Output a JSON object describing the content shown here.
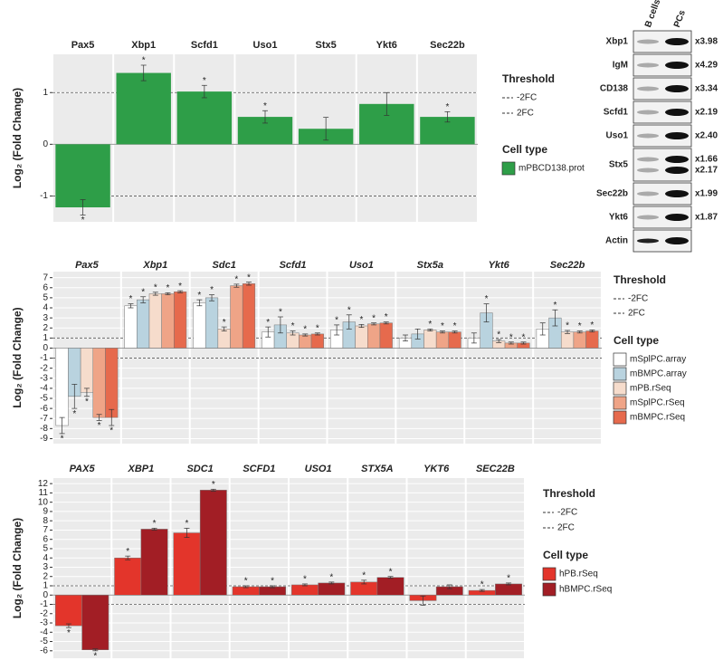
{
  "chart_data": [
    {
      "type": "bar",
      "y_label": "Log₂ (Fold Change)",
      "facets": [
        "Pax5",
        "Xbp1",
        "Scfd1",
        "Uso1",
        "Stx5",
        "Ykt6",
        "Sec22b"
      ],
      "ylim": [
        -1.5,
        1.74
      ],
      "yticks": [
        -1,
        0,
        1
      ],
      "grid": true,
      "threshold": {
        "title": "Threshold",
        "lines": [
          {
            "name": "-2FC",
            "value": -1
          },
          {
            "name": "2FC",
            "value": 1
          }
        ]
      },
      "legend_title": "Cell type",
      "series": [
        {
          "name": "mPBCD138.prot",
          "color": "#2e9e48",
          "values": [
            -1.22,
            1.38,
            1.02,
            0.53,
            0.3,
            0.78,
            0.53
          ],
          "errors": [
            0.15,
            0.15,
            0.12,
            0.12,
            0.22,
            0.22,
            0.1
          ],
          "labels": [
            "*",
            "*",
            "*",
            "*",
            null,
            null,
            "*"
          ]
        }
      ]
    },
    {
      "type": "bar",
      "y_label": "Log₂ (Fold Change)",
      "facets": [
        "Pax5",
        "Xbp1",
        "Sdc1",
        "Scfd1",
        "Uso1",
        "Stx5a",
        "Ykt6",
        "Sec22b"
      ],
      "ylim": [
        -9.5,
        7.6
      ],
      "yticks": [
        -9,
        -8,
        -7,
        -6,
        -5,
        -4,
        -3,
        -2,
        -1,
        0,
        1,
        2,
        3,
        4,
        5,
        6,
        7
      ],
      "grid": true,
      "threshold": {
        "title": "Threshold",
        "lines": [
          {
            "name": "-2FC",
            "value": -1
          },
          {
            "name": "2FC",
            "value": 1
          }
        ]
      },
      "legend_title": "Cell type",
      "series": [
        {
          "name": "mSplPC.array",
          "color": "#ffffff",
          "values": [
            -7.7,
            4.2,
            4.5,
            1.6,
            1.8,
            1.0,
            1.0,
            1.9
          ],
          "errors": [
            0.8,
            0.2,
            0.3,
            0.5,
            0.5,
            0.3,
            0.5,
            0.6
          ],
          "labels": [
            "*",
            "*",
            "*",
            "*",
            "*",
            null,
            null,
            null
          ]
        },
        {
          "name": "mBMPC.array",
          "color": "#b9d3df",
          "values": [
            -4.8,
            4.8,
            5.0,
            2.3,
            2.6,
            1.4,
            3.5,
            3.0
          ],
          "errors": [
            1.2,
            0.3,
            0.3,
            0.8,
            0.7,
            0.5,
            0.9,
            0.8
          ],
          "labels": [
            "*",
            "*",
            "*",
            "*",
            "*",
            null,
            "*",
            "*"
          ]
        },
        {
          "name": "mPB.rSeq",
          "color": "#f6dccc",
          "values": [
            -4.4,
            5.4,
            1.9,
            1.5,
            2.2,
            1.8,
            0.7,
            1.6
          ],
          "errors": [
            0.4,
            0.15,
            0.2,
            0.2,
            0.15,
            0.1,
            0.15,
            0.15
          ],
          "labels": [
            "*",
            "*",
            "*",
            "*",
            "*",
            "*",
            "*",
            "*"
          ]
        },
        {
          "name": "mSplPC.rSeq",
          "color": "#efa487",
          "values": [
            -6.9,
            5.4,
            6.2,
            1.3,
            2.4,
            1.6,
            0.5,
            1.6
          ],
          "errors": [
            0.3,
            0.1,
            0.15,
            0.1,
            0.1,
            0.1,
            0.1,
            0.1
          ],
          "labels": [
            "*",
            "*",
            "*",
            "*",
            "*",
            "*",
            "*",
            "*"
          ]
        },
        {
          "name": "mBMPC.rSeq",
          "color": "#e66a4d",
          "values": [
            -6.9,
            5.6,
            6.4,
            1.4,
            2.5,
            1.6,
            0.5,
            1.7
          ],
          "errors": [
            0.8,
            0.1,
            0.15,
            0.1,
            0.1,
            0.1,
            0.1,
            0.1
          ],
          "labels": [
            "*",
            "*",
            "*",
            "*",
            "*",
            "*",
            "*",
            "*"
          ]
        }
      ]
    },
    {
      "type": "bar",
      "y_label": "Log₂ (Fold Change)",
      "facets": [
        "PAX5",
        "XBP1",
        "SDC1",
        "SCFD1",
        "USO1",
        "STX5A",
        "YKT6",
        "SEC22B"
      ],
      "ylim": [
        -6.8,
        12.6
      ],
      "yticks": [
        -6,
        -5,
        -4,
        -3,
        -2,
        -1,
        0,
        1,
        2,
        3,
        4,
        5,
        6,
        7,
        8,
        9,
        10,
        11,
        12
      ],
      "grid": true,
      "threshold": {
        "title": "Threshold",
        "lines": [
          {
            "name": "-2FC",
            "value": -1
          },
          {
            "name": "2FC",
            "value": 1
          }
        ]
      },
      "legend_title": "Cell type",
      "series": [
        {
          "name": "hPB.rSeq",
          "color": "#e3352b",
          "values": [
            -3.3,
            4.0,
            6.7,
            0.9,
            1.1,
            1.4,
            -0.6,
            0.5
          ],
          "errors": [
            0.2,
            0.2,
            0.5,
            0.1,
            0.1,
            0.2,
            0.5,
            0.1
          ],
          "labels": [
            "*",
            "*",
            "*",
            "*",
            "*",
            "*",
            null,
            "*"
          ]
        },
        {
          "name": "hBMPC.rSeq",
          "color": "#a21e25",
          "values": [
            -5.9,
            7.1,
            11.3,
            0.9,
            1.3,
            1.9,
            0.9,
            1.2
          ],
          "errors": [
            0.1,
            0.1,
            0.1,
            0.1,
            0.1,
            0.1,
            0.2,
            0.1
          ],
          "labels": [
            "*",
            "*",
            "*",
            "*",
            "*",
            "*",
            null,
            "*"
          ]
        }
      ]
    }
  ],
  "blot": {
    "lanes": [
      "B cells",
      "PCs"
    ],
    "rows": [
      {
        "label": "Xbp1",
        "folds": [
          "x3.98"
        ]
      },
      {
        "label": "IgM",
        "folds": [
          "x4.29"
        ]
      },
      {
        "label": "CD138",
        "folds": [
          "x3.34"
        ]
      },
      {
        "label": "Scfd1",
        "folds": [
          "x2.19"
        ]
      },
      {
        "label": "Uso1",
        "folds": [
          "x2.40"
        ]
      },
      {
        "label": "Stx5",
        "folds": [
          "x1.66",
          "x2.17"
        ]
      },
      {
        "label": "Sec22b",
        "folds": [
          "x1.99"
        ]
      },
      {
        "label": "Ykt6",
        "folds": [
          "x1.87"
        ]
      },
      {
        "label": "Actin",
        "folds": []
      }
    ]
  }
}
